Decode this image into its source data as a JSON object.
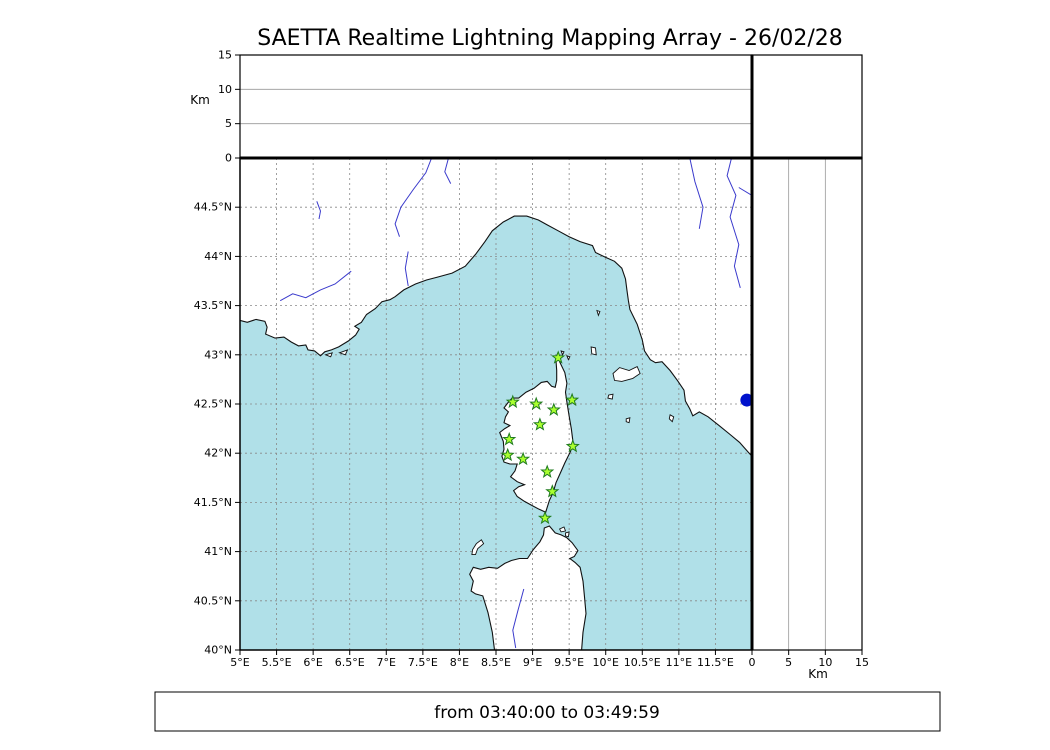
{
  "title": "SAETTA Realtime Lightning Mapping Array - 26/02/28",
  "footer": {
    "text": "from 03:40:00 to 03:49:59"
  },
  "colors": {
    "sea": "#b0e0e8",
    "land": "#ffffff",
    "coast": "#111111",
    "river": "#3a3acc",
    "grid": "#888888",
    "panel_grid": "#999999",
    "star_fill": "#aaff2f",
    "star_edge": "#1e7a1e",
    "lightning_dot": "#0012cc"
  },
  "map": {
    "lon_min": 5,
    "lon_max": 12,
    "lat_min": 40,
    "lat_max": 45,
    "x_ticks": [
      {
        "v": 5,
        "label": "5°E"
      },
      {
        "v": 5.5,
        "label": "5.5°E"
      },
      {
        "v": 6,
        "label": "6°E"
      },
      {
        "v": 6.5,
        "label": "6.5°E"
      },
      {
        "v": 7,
        "label": "7°E"
      },
      {
        "v": 7.5,
        "label": "7.5°E"
      },
      {
        "v": 8,
        "label": "8°E"
      },
      {
        "v": 8.5,
        "label": "8.5°E"
      },
      {
        "v": 9,
        "label": "9°E"
      },
      {
        "v": 9.5,
        "label": "9.5°E"
      },
      {
        "v": 10,
        "label": "10°E"
      },
      {
        "v": 10.5,
        "label": "10.5°E"
      },
      {
        "v": 11,
        "label": "11°E"
      },
      {
        "v": 11.5,
        "label": "11.5°E"
      }
    ],
    "y_ticks": [
      {
        "v": 40,
        "label": "40°N"
      },
      {
        "v": 40.5,
        "label": "40.5°N"
      },
      {
        "v": 41,
        "label": "41°N"
      },
      {
        "v": 41.5,
        "label": "41.5°N"
      },
      {
        "v": 42,
        "label": "42°N"
      },
      {
        "v": 42.5,
        "label": "42.5°N"
      },
      {
        "v": 43,
        "label": "43°N"
      },
      {
        "v": 43.5,
        "label": "43.5°N"
      },
      {
        "v": 44,
        "label": "44°N"
      },
      {
        "v": 44.5,
        "label": "44.5°N"
      }
    ]
  },
  "altitude_axis": {
    "label": "Km",
    "min": 0,
    "max": 15,
    "ticks": [
      0,
      5,
      10,
      15
    ],
    "gridlines": [
      5,
      10
    ]
  },
  "stations": [
    {
      "lon": 9.35,
      "lat": 42.97
    },
    {
      "lon": 8.73,
      "lat": 42.52
    },
    {
      "lon": 9.05,
      "lat": 42.5
    },
    {
      "lon": 9.54,
      "lat": 42.54
    },
    {
      "lon": 9.29,
      "lat": 42.44
    },
    {
      "lon": 9.1,
      "lat": 42.29
    },
    {
      "lon": 8.68,
      "lat": 42.14
    },
    {
      "lon": 9.55,
      "lat": 42.07
    },
    {
      "lon": 8.66,
      "lat": 41.98
    },
    {
      "lon": 8.87,
      "lat": 41.94
    },
    {
      "lon": 9.2,
      "lat": 41.81
    },
    {
      "lon": 9.27,
      "lat": 41.61
    },
    {
      "lon": 9.17,
      "lat": 41.34
    }
  ],
  "lightning_points": [
    {
      "lon": 11.93,
      "lat": 42.54
    }
  ]
}
